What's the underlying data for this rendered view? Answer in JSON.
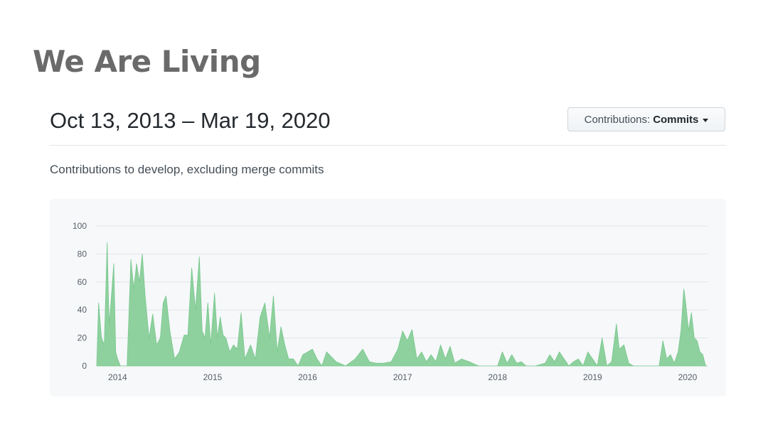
{
  "slide": {
    "title": "We Are Living"
  },
  "header": {
    "range": "Oct 13, 2013 – Mar 19, 2020",
    "contrib_label": "Contributions:",
    "contrib_value": "Commits"
  },
  "subtitle": "Contributions to develop, excluding merge commits",
  "colors": {
    "area": "#8fd19e",
    "area_stroke": "#76c78c",
    "grid": "#e1e4e8"
  },
  "chart_data": {
    "type": "area",
    "x_ticks": [
      "2014",
      "2015",
      "2016",
      "2017",
      "2018",
      "2019",
      "2020"
    ],
    "y_ticks": [
      0,
      20,
      40,
      60,
      80,
      100
    ],
    "ylim": [
      0,
      100
    ],
    "xlim": [
      2013.78,
      2020.21
    ],
    "grid": true,
    "series": [
      {
        "x": [
          2013.78,
          2013.8,
          2013.83,
          2013.86,
          2013.89,
          2013.91,
          2013.93,
          2013.96,
          2013.98,
          2014.0,
          2014.03,
          2014.06,
          2014.1,
          2014.14,
          2014.17,
          2014.2,
          2014.23,
          2014.26,
          2014.29,
          2014.33,
          2014.37,
          2014.41,
          2014.45,
          2014.48,
          2014.51,
          2014.55,
          2014.6,
          2014.65,
          2014.7,
          2014.74,
          2014.78,
          2014.82,
          2014.86,
          2014.89,
          2014.92,
          2014.95,
          2014.98,
          2015.02,
          2015.05,
          2015.08,
          2015.11,
          2015.14,
          2015.18,
          2015.22,
          2015.26,
          2015.3,
          2015.34,
          2015.4,
          2015.45,
          2015.5,
          2015.55,
          2015.6,
          2015.64,
          2015.68,
          2015.72,
          2015.76,
          2015.8,
          2015.85,
          2015.9,
          2015.95,
          2016.0,
          2016.05,
          2016.1,
          2016.15,
          2016.2,
          2016.3,
          2016.4,
          2016.5,
          2016.58,
          2016.65,
          2016.72,
          2016.8,
          2016.88,
          2016.95,
          2017.0,
          2017.05,
          2017.1,
          2017.15,
          2017.2,
          2017.25,
          2017.3,
          2017.35,
          2017.4,
          2017.45,
          2017.5,
          2017.55,
          2017.62,
          2017.7,
          2017.8,
          2017.9,
          2018.0,
          2018.05,
          2018.1,
          2018.15,
          2018.2,
          2018.25,
          2018.3,
          2018.4,
          2018.5,
          2018.55,
          2018.6,
          2018.65,
          2018.7,
          2018.75,
          2018.8,
          2018.85,
          2018.9,
          2018.95,
          2019.0,
          2019.05,
          2019.1,
          2019.15,
          2019.2,
          2019.25,
          2019.28,
          2019.33,
          2019.38,
          2019.43,
          2019.5,
          2019.6,
          2019.7,
          2019.74,
          2019.78,
          2019.82,
          2019.86,
          2019.9,
          2019.93,
          2019.96,
          2019.98,
          2020.01,
          2020.04,
          2020.07,
          2020.1,
          2020.13,
          2020.16,
          2020.19,
          2020.21
        ],
        "y": [
          0,
          45,
          20,
          15,
          88,
          30,
          45,
          73,
          10,
          5,
          0,
          0,
          0,
          76,
          55,
          73,
          60,
          80,
          50,
          20,
          37,
          15,
          20,
          45,
          50,
          25,
          5,
          10,
          22,
          22,
          70,
          40,
          78,
          25,
          20,
          45,
          15,
          52,
          20,
          35,
          22,
          20,
          10,
          15,
          12,
          38,
          5,
          15,
          5,
          35,
          45,
          20,
          50,
          10,
          28,
          15,
          5,
          5,
          0,
          8,
          10,
          12,
          5,
          0,
          10,
          3,
          0,
          5,
          12,
          3,
          2,
          2,
          3,
          12,
          25,
          18,
          26,
          5,
          10,
          3,
          8,
          3,
          15,
          5,
          14,
          2,
          5,
          3,
          0,
          0,
          0,
          10,
          2,
          8,
          2,
          3,
          0,
          0,
          2,
          8,
          3,
          10,
          5,
          0,
          3,
          5,
          0,
          10,
          5,
          0,
          20,
          0,
          3,
          30,
          12,
          15,
          2,
          0,
          0,
          0,
          0,
          18,
          5,
          8,
          2,
          10,
          25,
          55,
          45,
          25,
          38,
          20,
          18,
          10,
          8,
          0,
          0
        ]
      }
    ]
  }
}
